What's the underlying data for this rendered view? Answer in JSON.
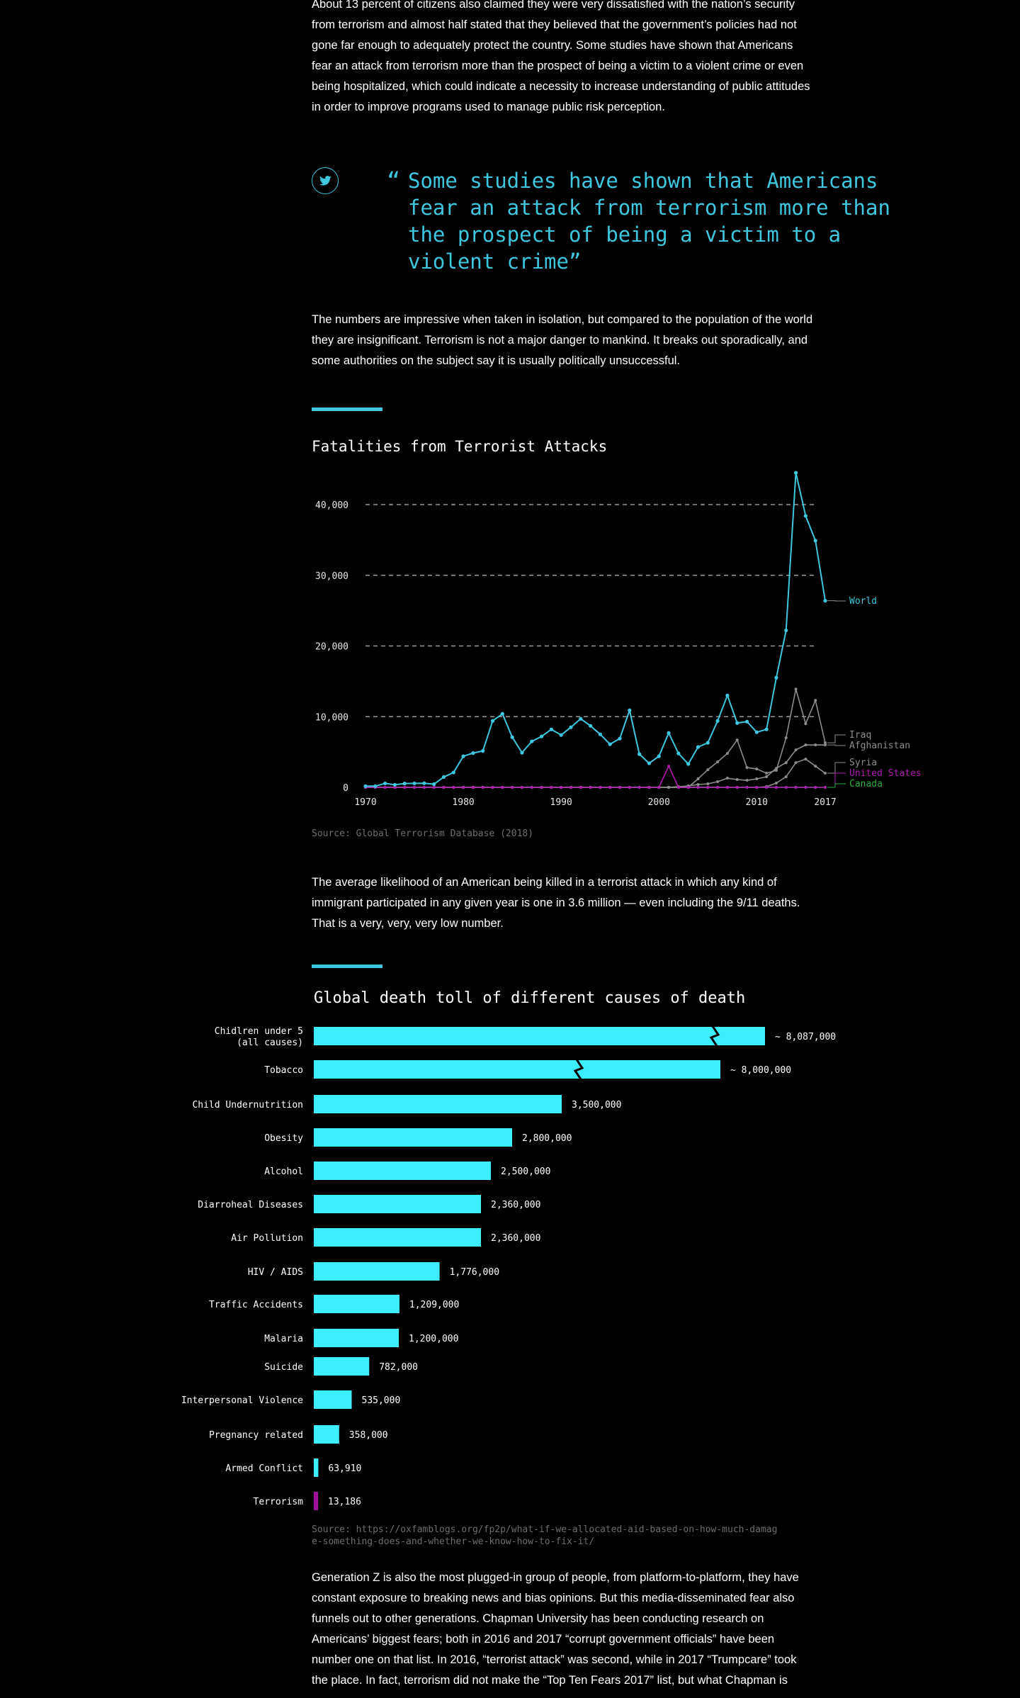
{
  "article": {
    "para1": "About 13 percent of citizens also claimed they were very dissatisfied with the nation’s security from terrorism and almost half stated that they believed that the government’s policies had not gone far enough to adequately protect the country. Some studies have shown that Americans fear an attack from terrorism more than the prospect of being a victim to a violent crime or even being hospitalized, which could indicate a necessity to increase understanding of public attitudes in order to improve programs used to manage public risk perception.",
    "quote_mark": "“",
    "quote": "Some studies have shown that Americans fear an attack from terrorism more than the prospect of being a victim to a violent crime”",
    "para2": "The numbers are impressive when taken in isolation, but compared to the population of the world they are insignificant. Terrorism is not a major danger to mankind. It breaks out sporadically, and some authorities on the subject say it is usually politically unsuccessful.",
    "para3": "The average likelihood of an American being killed in a terrorist attack in which any kind of immigrant participated in any given year is one in 3.6 million — even including the 9/11 deaths. That is a very, very, very low number.",
    "para4": "Generation Z is also the most plugged-in group of people, from platform-to-platform, they have constant exposure to breaking news and bias opinions. But this media-disseminated fear also funnels out to other generations. Chapman University has been conducting research on Americans’ biggest fears; both in 2016 and 2017 “corrupt government officials” have been number one on that list. In 2016, “terrorist attack” was second, while in 2017 “Trumpcare” took the place. In fact, terrorism did not make the “Top Ten Fears 2017” list, but what Chapman is"
  },
  "icons": {
    "share": "twitter-icon"
  },
  "colors": {
    "accent": "#3ec7df",
    "bar": "#3deeff",
    "terror": "#a0109d",
    "gray": "#8c8c8c",
    "us": "#b01ab0",
    "canada": "#2fae3f"
  },
  "chart_data": [
    {
      "type": "line",
      "title": "Fatalities from Terrorist Attacks",
      "source": "Source: Global Terrorism Database (2018)",
      "xlim": [
        1970,
        2017
      ],
      "ylim": [
        0,
        45000
      ],
      "x_ticks": [
        "1970",
        "1980",
        "1990",
        "2000",
        "2010",
        "2017"
      ],
      "y_ticks": [
        "0",
        "10,000",
        "20,000",
        "30,000",
        "40,000"
      ],
      "grid": "dashed horizontal at 10,000 intervals",
      "years": [
        1970,
        1971,
        1972,
        1973,
        1974,
        1975,
        1976,
        1977,
        1978,
        1979,
        1980,
        1981,
        1982,
        1983,
        1984,
        1985,
        1986,
        1987,
        1988,
        1989,
        1990,
        1991,
        1992,
        1993,
        1994,
        1995,
        1996,
        1997,
        1998,
        1999,
        2000,
        2001,
        2002,
        2003,
        2004,
        2005,
        2006,
        2007,
        2008,
        2009,
        2010,
        2011,
        2012,
        2013,
        2014,
        2015,
        2016,
        2017
      ],
      "series": [
        {
          "name": "World",
          "color": "#3ec7df",
          "values": [
            170,
            170,
            560,
            370,
            540,
            560,
            580,
            450,
            1460,
            2100,
            4400,
            4850,
            5150,
            9400,
            10400,
            7100,
            4900,
            6500,
            7200,
            8200,
            7400,
            8500,
            9700,
            8700,
            7500,
            6100,
            6900,
            10900,
            4700,
            3400,
            4400,
            7700,
            4800,
            3300,
            5700,
            6300,
            9400,
            13000,
            9100,
            9300,
            7800,
            8200,
            15500,
            22200,
            44500,
            38400,
            34900,
            26400
          ]
        },
        {
          "name": "Iraq",
          "color": "#8c8c8c",
          "values": [
            0,
            0,
            0,
            0,
            0,
            0,
            0,
            0,
            0,
            0,
            0,
            0,
            0,
            0,
            0,
            0,
            0,
            0,
            0,
            0,
            0,
            0,
            0,
            0,
            0,
            0,
            0,
            0,
            0,
            0,
            0,
            0,
            0,
            0,
            1200,
            2500,
            3600,
            4800,
            6700,
            2800,
            2600,
            2000,
            2400,
            7000,
            13900,
            9000,
            12300,
            6300
          ]
        },
        {
          "name": "Afghanistan",
          "color": "#8c8c8c",
          "values": [
            0,
            0,
            0,
            0,
            0,
            0,
            0,
            0,
            0,
            0,
            0,
            0,
            0,
            0,
            0,
            0,
            0,
            0,
            0,
            0,
            0,
            0,
            0,
            0,
            0,
            0,
            0,
            0,
            0,
            0,
            0,
            0,
            100,
            200,
            400,
            500,
            800,
            1300,
            1100,
            1000,
            1200,
            1500,
            2700,
            3500,
            5300,
            6000,
            6000,
            6000
          ]
        },
        {
          "name": "Syria",
          "color": "#8c8c8c",
          "values": [
            0,
            0,
            0,
            0,
            0,
            0,
            0,
            0,
            0,
            0,
            0,
            0,
            0,
            0,
            0,
            0,
            0,
            0,
            0,
            0,
            0,
            0,
            0,
            0,
            0,
            0,
            0,
            0,
            0,
            0,
            0,
            0,
            0,
            0,
            0,
            0,
            0,
            0,
            0,
            0,
            0,
            100,
            600,
            1500,
            3500,
            4000,
            3000,
            2000
          ]
        },
        {
          "name": "United States",
          "color": "#b01ab0",
          "values": [
            0,
            0,
            0,
            0,
            0,
            0,
            0,
            0,
            0,
            0,
            0,
            0,
            0,
            0,
            0,
            0,
            0,
            0,
            0,
            0,
            0,
            0,
            0,
            0,
            0,
            0,
            0,
            0,
            0,
            0,
            0,
            3000,
            0,
            0,
            0,
            0,
            0,
            0,
            0,
            0,
            0,
            0,
            0,
            0,
            0,
            0,
            0,
            0
          ]
        },
        {
          "name": "Canada",
          "color": "#2fae3f",
          "values": [
            0,
            0,
            0,
            0,
            0,
            0,
            0,
            0,
            0,
            0,
            0,
            0,
            0,
            0,
            0,
            0,
            0,
            0,
            0,
            0,
            0,
            0,
            0,
            0,
            0,
            0,
            0,
            0,
            0,
            0,
            0,
            0,
            0,
            0,
            0,
            0,
            0,
            0,
            0,
            0,
            0,
            0,
            0,
            0,
            0,
            0,
            0,
            0
          ]
        }
      ]
    },
    {
      "type": "bar",
      "orientation": "horizontal",
      "title": "Global death toll of different causes of death",
      "source": "Source: https://oxfamblogs.org/fp2p/what-if-we-allocated-aid-based-on-how-much-damage-something-does-and-whether-we-know-how-to-fix-it/",
      "categories": [
        "Chidlren under 5 (all causes)",
        "Tobacco",
        "Child Undernutrition",
        "Obesity",
        "Alcohol",
        "Diarroheal Diseases",
        "Air Pollution",
        "HIV / AIDS",
        "Traffic Accidents",
        "Malaria",
        "Suicide",
        "Interpersonal Violence",
        "Pregnancy related",
        "Armed Conflict",
        "Terrorism"
      ],
      "values": [
        8087000,
        8000000,
        3500000,
        2800000,
        2500000,
        2360000,
        2360000,
        1776000,
        1209000,
        1200000,
        782000,
        535000,
        358000,
        63910,
        13186
      ],
      "value_labels": [
        "~ 8,087,000",
        "~ 8,000,000",
        "3,500,000",
        "2,800,000",
        "2,500,000",
        "2,360,000",
        "2,360,000",
        "1,776,000",
        "1,209,000",
        "1,200,000",
        "782,000",
        "535,000",
        "358,000",
        "63,910",
        "13,186"
      ],
      "axis_break": [
        true,
        true,
        false,
        false,
        false,
        false,
        false,
        false,
        false,
        false,
        false,
        false,
        false,
        false,
        false
      ],
      "highlight": "Terrorism"
    }
  ]
}
